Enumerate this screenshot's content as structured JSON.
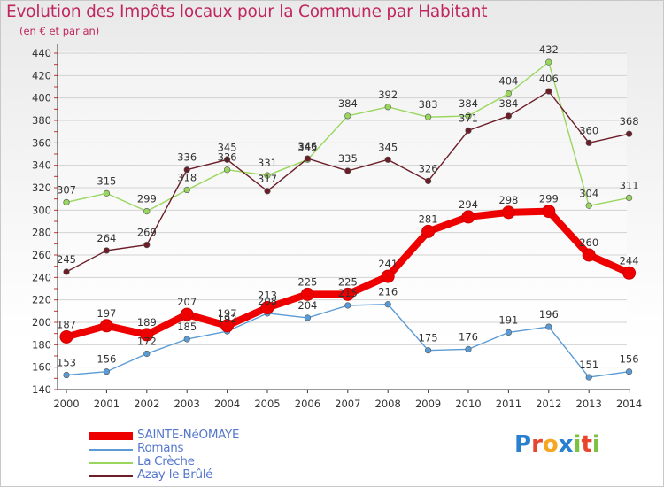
{
  "title": "Evolution des Impôts locaux pour la Commune par Habitant",
  "subtitle": "(en € et par an)",
  "logo": {
    "text": "Proxiti",
    "letters": [
      "P",
      "r",
      "o",
      "x",
      "i",
      "t",
      "i"
    ]
  },
  "colors": {
    "series": [
      "#ee0000",
      "#5b9bd5",
      "#99d65e",
      "#6b1e28"
    ],
    "title": "#c0265f",
    "legend_text": "#5577cc",
    "logo": [
      "#2a7fcf",
      "#e8452c",
      "#f5a623",
      "#2a7fcf",
      "#7cc242",
      "#e8452c",
      "#7cc242"
    ]
  },
  "chart_data": {
    "type": "line",
    "title": "Evolution des Impôts locaux pour la Commune par Habitant",
    "subtitle": "(en € et par an)",
    "x": [
      "2000",
      "2001",
      "2002",
      "2003",
      "2004",
      "2005",
      "2006",
      "2007",
      "2008",
      "2009",
      "2010",
      "2011",
      "2012",
      "2013",
      "2014"
    ],
    "y_ticks": [
      140,
      160,
      180,
      200,
      220,
      240,
      260,
      280,
      300,
      320,
      340,
      360,
      380,
      400,
      420,
      440
    ],
    "ylim": [
      140,
      440
    ],
    "grid": "horizontal",
    "legend_position": "bottom-left",
    "series": [
      {
        "name": "SAINTE-NéOMAYE",
        "values": [
          187,
          197,
          189,
          207,
          197,
          213,
          225,
          225,
          241,
          281,
          294,
          298,
          299,
          260,
          244
        ]
      },
      {
        "name": "Romans",
        "values": [
          153,
          156,
          172,
          185,
          192,
          208,
          204,
          215,
          216,
          175,
          176,
          191,
          196,
          151,
          156
        ]
      },
      {
        "name": "La Crèche",
        "values": [
          307,
          315,
          299,
          318,
          336,
          331,
          345,
          384,
          392,
          383,
          384,
          404,
          432,
          304,
          311
        ]
      },
      {
        "name": "Azay-le-Brûlé",
        "values": [
          245,
          264,
          269,
          336,
          345,
          317,
          346,
          335,
          345,
          326,
          371,
          384,
          406,
          360,
          368
        ]
      }
    ]
  }
}
